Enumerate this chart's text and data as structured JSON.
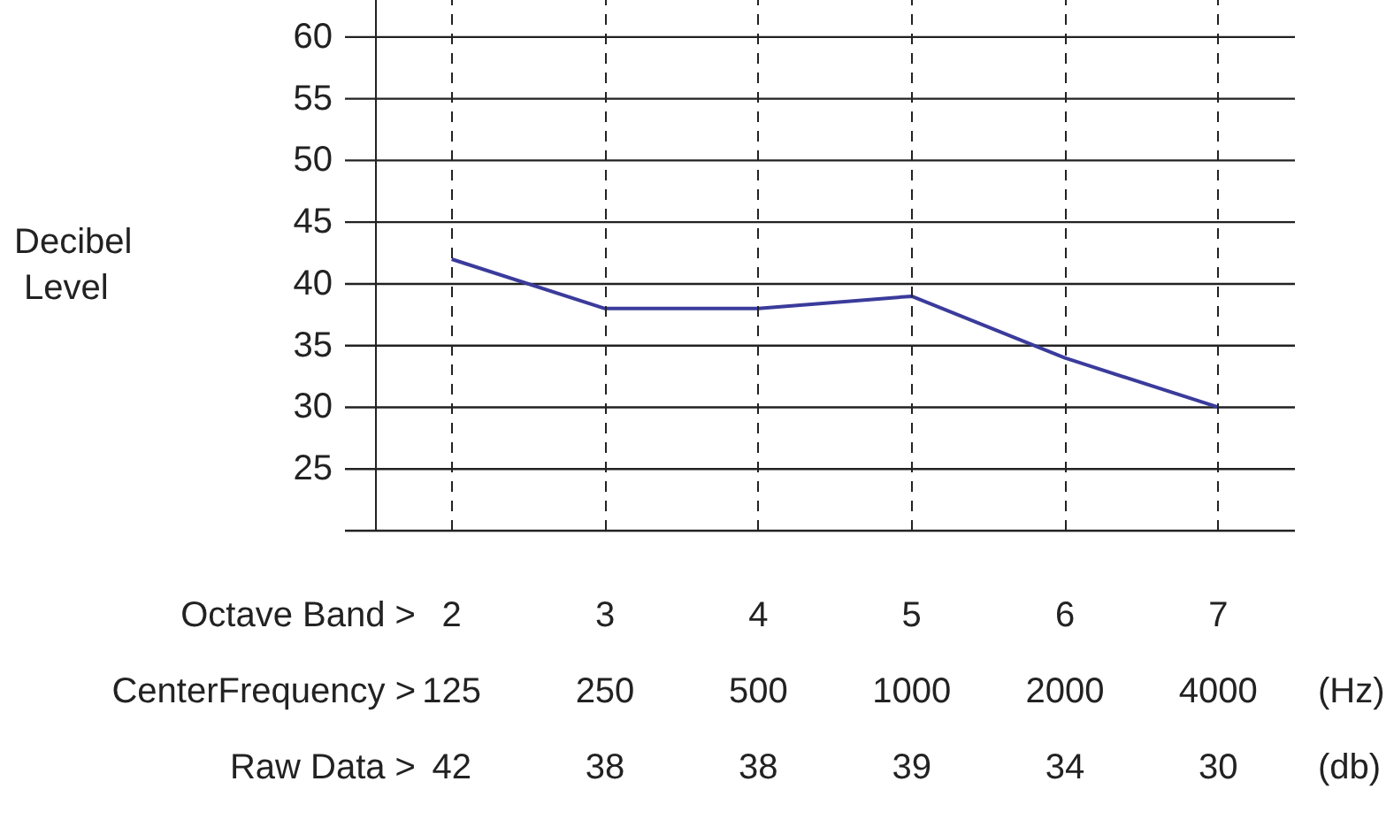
{
  "chart_data": {
    "type": "line",
    "categories": [
      "2",
      "3",
      "4",
      "5",
      "6",
      "7"
    ],
    "xlabel": "Octave Band >",
    "series": [
      {
        "color": "#3b3b9c",
        "values": [
          42,
          38,
          38,
          39,
          34,
          30
        ]
      }
    ],
    "ylim": [
      20,
      63
    ],
    "yticks": [
      {
        "value": 20,
        "label": null
      },
      25,
      30,
      35,
      40,
      45,
      50,
      55,
      60
    ],
    "grid": true,
    "marker": "none",
    "line_style": "solid",
    "data_labels": true,
    "annotations": [
      "Decibel Level",
      "CenterFrequency >",
      "(Hz)",
      "Raw Data >",
      "(db)",
      "125",
      "250",
      "500",
      "1000",
      "2000",
      "4000"
    ]
  }
}
